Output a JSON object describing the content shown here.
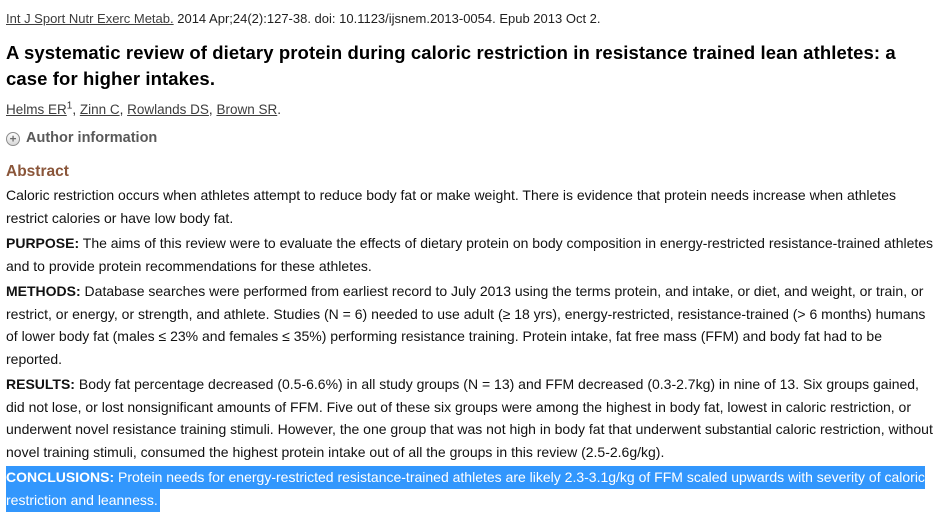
{
  "citation": {
    "journal": "Int J Sport Nutr Exerc Metab.",
    "details": " 2014 Apr;24(2):127-38. doi: 10.1123/ijsnem.2013-0054. Epub 2013 Oct 2."
  },
  "title": "A systematic review of dietary protein during caloric restriction in resistance trained lean athletes: a case for higher intakes.",
  "authors": [
    {
      "name": "Helms ER",
      "superscript": "1"
    },
    {
      "name": "Zinn C",
      "superscript": ""
    },
    {
      "name": "Rowlands DS",
      "superscript": ""
    },
    {
      "name": "Brown SR",
      "superscript": ""
    }
  ],
  "author_information": {
    "icon": "plus-circle-icon",
    "plus_glyph": "+",
    "label": "Author information"
  },
  "abstract": {
    "heading": "Abstract",
    "paragraphs": [
      {
        "label": "",
        "text": "Caloric restriction occurs when athletes attempt to reduce body fat or make weight. There is evidence that protein needs increase when athletes restrict calories or have low body fat.",
        "highlighted": false
      },
      {
        "label": "PURPOSE:",
        "text": " The aims of this review were to evaluate the effects of dietary protein on body composition in energy-restricted resistance-trained athletes and to provide protein recommendations for these athletes.",
        "highlighted": false
      },
      {
        "label": "METHODS:",
        "text": " Database searches were performed from earliest record to July 2013 using the terms protein, and intake, or diet, and weight, or train, or restrict, or energy, or strength, and athlete. Studies (N = 6) needed to use adult (≥ 18 yrs), energy-restricted, resistance-trained (> 6 months) humans of lower body fat (males ≤ 23% and females ≤ 35%) performing resistance training. Protein intake, fat free mass (FFM) and body fat had to be reported.",
        "highlighted": false
      },
      {
        "label": "RESULTS:",
        "text": " Body fat percentage decreased (0.5-6.6%) in all study groups (N = 13) and FFM decreased (0.3-2.7kg) in nine of 13. Six groups gained, did not lose, or lost nonsignificant amounts of FFM. Five out of these six groups were among the highest in body fat, lowest in caloric restriction, or underwent novel resistance training stimuli. However, the one group that was not high in body fat that underwent substantial caloric restriction, without novel training stimuli, consumed the highest protein intake out of all the groups in this review (2.5-2.6g/kg).",
        "highlighted": false
      },
      {
        "label": "CONCLUSIONS:",
        "text": " Protein needs for energy-restricted resistance-trained athletes are likely 2.3-3.1g/kg of FFM scaled upwards with severity of caloric restriction and leanness.",
        "highlighted": true
      }
    ]
  },
  "colors": {
    "abstract_heading": "#8a563a",
    "selection_background": "#3297fd",
    "selection_text": "#ffffff",
    "link_text": "#3d3d3d",
    "body_text": "#111111"
  }
}
